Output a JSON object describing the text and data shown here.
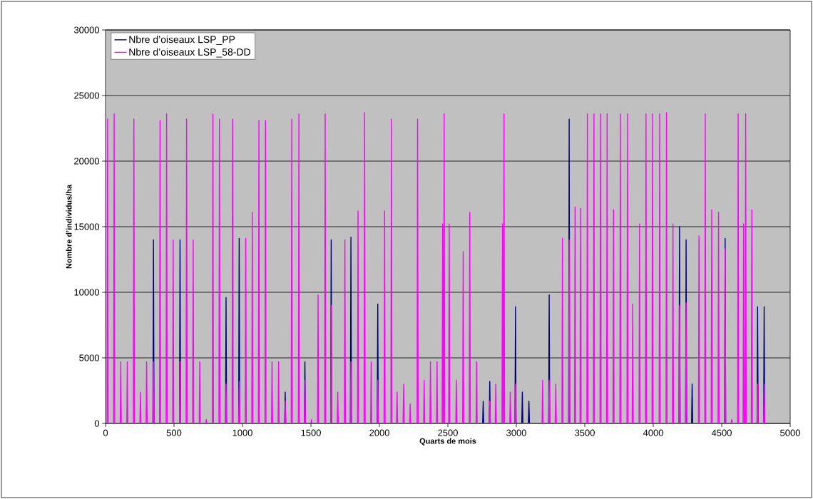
{
  "chart_data": {
    "type": "line",
    "xlabel": "Quarts de mois",
    "ylabel": "Nombre d’individus/ha",
    "xlim": [
      0,
      5000
    ],
    "xticks": [
      0,
      500,
      1000,
      1500,
      2000,
      2500,
      3000,
      3500,
      4000,
      4500,
      5000
    ],
    "ylim": [
      0,
      30000
    ],
    "yticks": [
      0,
      5000,
      10000,
      15000,
      20000,
      25000,
      30000
    ],
    "grid": "y",
    "legend": "top left",
    "series": [
      {
        "name": "Nbre d’oiseaux LSP_PP",
        "color": "#000080",
        "x": [
          346,
          350,
          354,
          355,
          540,
          544,
          548,
          549,
          876,
          880,
          884,
          885,
          972,
          976,
          980,
          981,
          1308,
          1312,
          1316,
          1317,
          1452,
          1456,
          1460,
          1461,
          1644,
          1648,
          1652,
          1653,
          1788,
          1792,
          1796,
          1797,
          1984,
          1988,
          1992,
          1993,
          2754,
          2758,
          2762,
          2763,
          2802,
          2806,
          2810,
          2811,
          2990,
          2994,
          2998,
          2999,
          3040,
          3044,
          3048,
          3049,
          3088,
          3092,
          3096,
          3097,
          3236,
          3240,
          3244,
          3245,
          3382,
          3386,
          3390,
          3391,
          4188,
          4192,
          4196,
          4197,
          4236,
          4240,
          4244,
          4245,
          4280,
          4284,
          4288,
          4289,
          4521,
          4525,
          4529,
          4530,
          4758,
          4762,
          4766,
          4767,
          4806,
          4810,
          4814
        ],
        "values": [
          0,
          14000,
          0,
          null,
          0,
          14000,
          0,
          null,
          0,
          9600,
          0,
          null,
          0,
          14100,
          0,
          null,
          0,
          2400,
          0,
          null,
          0,
          4700,
          0,
          null,
          0,
          14000,
          0,
          null,
          0,
          14200,
          0,
          null,
          0,
          9100,
          0,
          null,
          0,
          1700,
          0,
          null,
          0,
          3200,
          0,
          null,
          0,
          8900,
          0,
          null,
          0,
          2400,
          0,
          null,
          0,
          1700,
          0,
          null,
          0,
          9800,
          0,
          null,
          0,
          23200,
          0,
          null,
          0,
          15000,
          0,
          null,
          0,
          14000,
          0,
          null,
          0,
          3000,
          0,
          null,
          0,
          14100,
          0,
          null,
          0,
          8900,
          0,
          null,
          0,
          8900,
          0
        ]
      },
      {
        "name": "Nbre d’oiseaux LSP_58-DD",
        "color": "#ff00ff",
        "x": [
          11,
          15,
          19,
          59,
          63,
          67,
          107,
          111,
          115,
          155,
          159,
          163,
          203,
          207,
          211,
          251,
          255,
          259,
          296,
          300,
          304,
          346,
          350,
          354,
          394,
          398,
          402,
          442,
          446,
          450,
          490,
          494,
          498,
          540,
          544,
          548,
          588,
          592,
          596,
          636,
          640,
          644,
          684,
          688,
          692,
          732,
          736,
          740,
          780,
          784,
          788,
          828,
          832,
          836,
          876,
          880,
          884,
          924,
          928,
          932,
          972,
          976,
          980,
          1020,
          1024,
          1028,
          1068,
          1072,
          1076,
          1116,
          1120,
          1124,
          1164,
          1168,
          1172,
          1212,
          1216,
          1220,
          1260,
          1264,
          1268,
          1308,
          1312,
          1316,
          1356,
          1360,
          1364,
          1408,
          1412,
          1416,
          1452,
          1456,
          1460,
          1500,
          1504,
          1508,
          1548,
          1552,
          1556,
          1600,
          1604,
          1608,
          1644,
          1648,
          1652,
          1692,
          1696,
          1700,
          1744,
          1748,
          1752,
          1788,
          1792,
          1796,
          1840,
          1844,
          1848,
          1888,
          1892,
          1896,
          1936,
          1940,
          1944,
          1984,
          1988,
          1992,
          2034,
          2038,
          2042,
          2084,
          2088,
          2092,
          2125,
          2129,
          2133,
          2173,
          2177,
          2181,
          2221,
          2225,
          2229,
          2275,
          2279,
          2283,
          2323,
          2327,
          2331,
          2369,
          2373,
          2377,
          2417,
          2421,
          2425,
          2458,
          2462,
          2466,
          2469,
          2473,
          2477,
          2506,
          2510,
          2514,
          2558,
          2562,
          2566,
          2608,
          2612,
          2616,
          2656,
          2660,
          2664,
          2706,
          2710,
          2714,
          2802,
          2806,
          2810,
          2846,
          2850,
          2854,
          2895,
          2899,
          2903,
          2906,
          2910,
          2914,
          2952,
          2956,
          2960,
          2990,
          2994,
          2998,
          3188,
          3192,
          3196,
          3236,
          3240,
          3244,
          3284,
          3288,
          3292,
          3333,
          3337,
          3341,
          3382,
          3386,
          3390,
          3425,
          3429,
          3433,
          3465,
          3469,
          3473,
          3515,
          3519,
          3523,
          3563,
          3567,
          3571,
          3611,
          3615,
          3619,
          3659,
          3663,
          3667,
          3706,
          3710,
          3714,
          3756,
          3760,
          3764,
          3808,
          3812,
          3816,
          3846,
          3850,
          3854,
          3896,
          3900,
          3904,
          3943,
          3947,
          3951,
          3991,
          3995,
          3999,
          4043,
          4047,
          4051,
          4093,
          4097,
          4101,
          4140,
          4144,
          4148,
          4188,
          4192,
          4196,
          4236,
          4240,
          4244,
          4330,
          4334,
          4338,
          4376,
          4380,
          4384,
          4423,
          4427,
          4431,
          4473,
          4477,
          4481,
          4521,
          4525,
          4529,
          4569,
          4573,
          4577,
          4616,
          4620,
          4624,
          4656,
          4660,
          4664,
          4671,
          4675,
          4679,
          4716,
          4720,
          4724,
          4758,
          4762,
          4766,
          4806,
          4810,
          4814
        ],
        "values": [
          0,
          23200,
          0,
          0,
          23600,
          0,
          0,
          4700,
          0,
          0,
          4700,
          0,
          0,
          23200,
          0,
          0,
          2400,
          0,
          0,
          4700,
          0,
          0,
          4700,
          0,
          0,
          23100,
          0,
          0,
          23600,
          0,
          0,
          14000,
          0,
          0,
          4700,
          0,
          0,
          23200,
          0,
          0,
          14000,
          0,
          0,
          4700,
          0,
          0,
          300,
          0,
          0,
          23600,
          0,
          0,
          23200,
          0,
          0,
          3000,
          0,
          0,
          23200,
          0,
          0,
          3200,
          0,
          0,
          14100,
          0,
          0,
          16100,
          0,
          0,
          23100,
          0,
          0,
          23100,
          0,
          0,
          4700,
          0,
          0,
          4700,
          0,
          0,
          1700,
          0,
          0,
          23200,
          0,
          0,
          23600,
          0,
          0,
          3300,
          0,
          0,
          300,
          0,
          0,
          9800,
          0,
          0,
          23600,
          0,
          0,
          9000,
          0,
          0,
          2400,
          0,
          0,
          14000,
          0,
          0,
          4700,
          0,
          0,
          16200,
          0,
          0,
          23700,
          0,
          0,
          4700,
          0,
          0,
          3300,
          0,
          0,
          16200,
          0,
          0,
          23200,
          0,
          0,
          2400,
          0,
          0,
          3000,
          0,
          0,
          1500,
          0,
          0,
          23200,
          0,
          0,
          3300,
          0,
          0,
          4700,
          0,
          0,
          4700,
          0,
          0,
          15200,
          0,
          0,
          23600,
          0,
          0,
          15200,
          0,
          0,
          3300,
          0,
          0,
          13100,
          0,
          0,
          16100,
          0,
          0,
          4700,
          0,
          0,
          1700,
          0,
          0,
          3000,
          0,
          0,
          15200,
          0,
          0,
          23600,
          0,
          0,
          2400,
          0,
          0,
          3000,
          0,
          0,
          3300,
          0,
          0,
          3300,
          0,
          0,
          3000,
          0,
          0,
          14100,
          0,
          0,
          14000,
          0,
          0,
          16500,
          0,
          0,
          16400,
          0,
          0,
          23600,
          0,
          0,
          23600,
          0,
          0,
          23600,
          0,
          0,
          23600,
          0,
          0,
          16300,
          0,
          0,
          23600,
          0,
          0,
          23600,
          0,
          0,
          9100,
          0,
          0,
          15200,
          0,
          0,
          23600,
          0,
          0,
          23600,
          0,
          0,
          23600,
          0,
          0,
          23700,
          0,
          0,
          15200,
          0,
          0,
          9000,
          0,
          0,
          9200,
          0,
          0,
          14300,
          0,
          0,
          23600,
          0,
          0,
          16300,
          0,
          0,
          16100,
          0,
          0,
          13300,
          0,
          0,
          300,
          0,
          0,
          23600,
          0,
          0,
          15200,
          0,
          0,
          23600,
          0,
          0,
          16300,
          0,
          0,
          3000,
          0,
          0,
          3000,
          0
        ]
      }
    ]
  }
}
